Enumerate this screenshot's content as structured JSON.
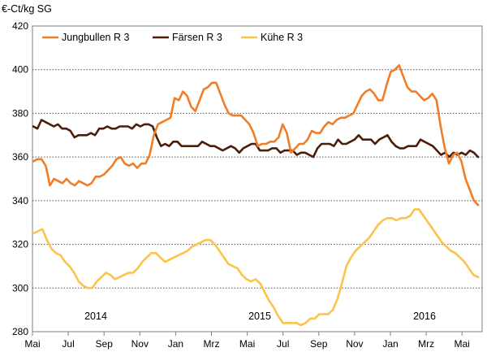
{
  "chart_data": {
    "type": "line",
    "unit_label": "€-Ct/kg SG",
    "ylim": [
      280,
      420
    ],
    "yticks": [
      280,
      300,
      320,
      340,
      360,
      380,
      400,
      420
    ],
    "grid": "horizontal dotted",
    "legend_position": "top",
    "x_tick_labels": [
      "Mai",
      "Jul",
      "Sep",
      "Nov",
      "Jan",
      "Mrz",
      "Mai",
      "Jul",
      "Sep",
      "Nov",
      "Jan",
      "Mrz",
      "Mai"
    ],
    "year_labels": [
      "2014",
      "2015",
      "2016"
    ],
    "series": [
      {
        "name": "Jungbullen R 3",
        "color": "#f07d28",
        "values": [
          358,
          359,
          359,
          356,
          347,
          350,
          349,
          348,
          350,
          348,
          347,
          349,
          348,
          347,
          348,
          351,
          351,
          352,
          354,
          356,
          359,
          360,
          357,
          356,
          357,
          355,
          357,
          357,
          361,
          370,
          375,
          376,
          377,
          378,
          387,
          386,
          390,
          388,
          383,
          381,
          386,
          391,
          392,
          394,
          394,
          389,
          384,
          380,
          379,
          379,
          379,
          377,
          375,
          371,
          365,
          366,
          366,
          367,
          367,
          369,
          375,
          371,
          362,
          364,
          366,
          366,
          368,
          372,
          371,
          371,
          374,
          376,
          375,
          377,
          378,
          378,
          379,
          380,
          384,
          388,
          390,
          391,
          389,
          386,
          386,
          393,
          399,
          400,
          402,
          397,
          392,
          390,
          390,
          388,
          386,
          387,
          389,
          386,
          374,
          364,
          357,
          361,
          362,
          358,
          350,
          345,
          340,
          338
        ]
      },
      {
        "name": "Färsen R 3",
        "color": "#4b1e0a",
        "values": [
          374,
          373,
          377,
          376,
          375,
          374,
          375,
          373,
          373,
          372,
          369,
          370,
          370,
          370,
          371,
          370,
          373,
          373,
          374,
          373,
          373,
          374,
          374,
          374,
          373,
          375,
          374,
          375,
          375,
          374,
          369,
          365,
          366,
          365,
          367,
          367,
          365,
          365,
          365,
          365,
          365,
          367,
          366,
          365,
          365,
          364,
          363,
          364,
          365,
          364,
          362,
          364,
          365,
          366,
          366,
          363,
          363,
          363,
          364,
          364,
          362,
          363,
          363,
          363,
          361,
          362,
          362,
          361,
          360,
          364,
          366,
          366,
          366,
          365,
          368,
          366,
          366,
          367,
          368,
          370,
          368,
          368,
          368,
          366,
          368,
          369,
          370,
          367,
          365,
          364,
          364,
          365,
          365,
          365,
          368,
          367,
          366,
          365,
          363,
          361,
          362,
          360,
          362,
          361,
          362,
          361,
          363,
          362,
          360
        ]
      },
      {
        "name": "Kühe R 3",
        "color": "#fbc34a",
        "values": [
          325,
          326,
          327,
          322,
          318,
          316,
          315,
          312,
          310,
          307,
          303,
          301,
          300,
          300,
          303,
          305,
          307,
          306,
          304,
          305,
          306,
          307,
          307,
          309,
          312,
          314,
          316,
          316,
          314,
          312,
          313,
          314,
          315,
          316,
          317,
          319,
          320,
          321,
          322,
          322,
          320,
          317,
          314,
          311,
          310,
          309,
          306,
          304,
          303,
          304,
          302,
          298,
          294,
          291,
          287,
          284,
          284,
          284,
          284,
          283,
          284,
          286,
          286,
          288,
          288,
          288,
          290,
          295,
          302,
          310,
          314,
          317,
          319,
          321,
          323,
          326,
          329,
          331,
          332,
          332,
          331,
          332,
          332,
          333,
          336,
          336,
          333,
          330,
          327,
          324,
          321,
          319,
          317,
          316,
          314,
          312,
          309,
          306,
          305
        ]
      }
    ]
  }
}
